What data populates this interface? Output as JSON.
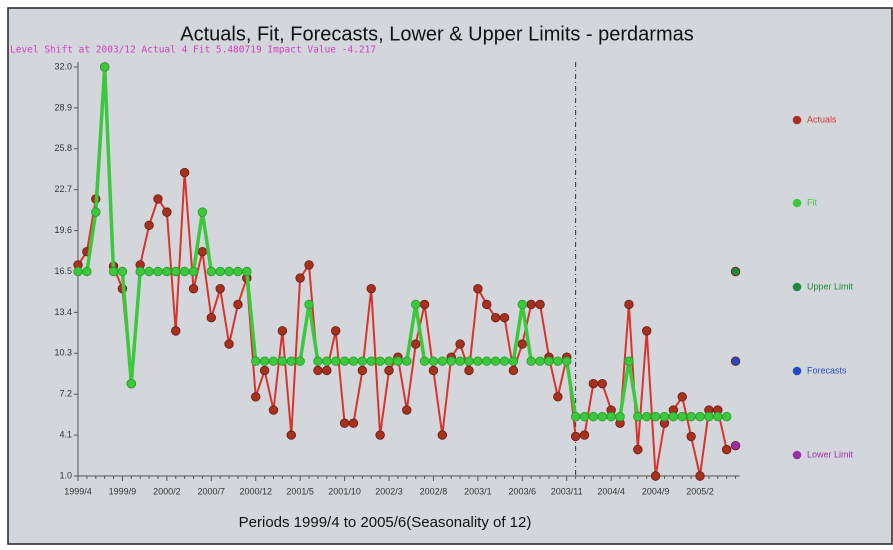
{
  "chart_data": {
    "type": "line",
    "title": "Actuals, Fit, Forecasts, Lower & Upper Limits - perdarmas",
    "subtitle": "Level Shift at 2003/12 Actual 4 Fit 5.480719 Impact Value -4.217",
    "level_shift_period": "2003/12",
    "x_label": "Periods 1999/4 to 2005/6(Seasonality of 12)",
    "categories": [
      "1999/4",
      null,
      null,
      null,
      null,
      "1999/9",
      null,
      null,
      null,
      null,
      "2000/2",
      null,
      null,
      null,
      null,
      "2000/7",
      null,
      null,
      null,
      null,
      "2000/12",
      null,
      null,
      null,
      null,
      "2001/5",
      null,
      null,
      null,
      null,
      "2001/10",
      null,
      null,
      null,
      null,
      "2002/3",
      null,
      null,
      null,
      null,
      "2002/8",
      null,
      null,
      null,
      null,
      "2003/1",
      null,
      null,
      null,
      null,
      "2003/6",
      null,
      null,
      null,
      null,
      "2003/11",
      null,
      null,
      null,
      null,
      "2004/4",
      null,
      null,
      null,
      null,
      "2004/9",
      null,
      null,
      null,
      null,
      "2005/2",
      null,
      null,
      null,
      null
    ],
    "ylim": [
      1,
      32
    ],
    "yticks": [
      {
        "value": 1,
        "label": "1.0"
      },
      4.1,
      7.2,
      10.3,
      13.4,
      16.5,
      19.6,
      22.7,
      25.8,
      28.9,
      {
        "value": 32,
        "label": "32.0"
      }
    ],
    "series": [
      {
        "name": "Actuals",
        "color": "#d8342c",
        "marker": "#a8301e",
        "line": true,
        "values": [
          17,
          18,
          22,
          32,
          16.9,
          15.2,
          8,
          17,
          20,
          22,
          21,
          12,
          24,
          15.2,
          18,
          13,
          15.2,
          11,
          14,
          16,
          7,
          9,
          6,
          12,
          4.1,
          16,
          17,
          9,
          9,
          12,
          5,
          5,
          9,
          15.2,
          4.1,
          9,
          10,
          6,
          11,
          14,
          9,
          4.1,
          10,
          11,
          9,
          15.2,
          14,
          13,
          13,
          9,
          11,
          14,
          14,
          10,
          7,
          10,
          4,
          4.1,
          8,
          8,
          6,
          5,
          14,
          3,
          12,
          1,
          5,
          6,
          7,
          4,
          1,
          6,
          6,
          3,
          null
        ]
      },
      {
        "name": "Fit",
        "color": "#3cc83c",
        "marker": "#3cc83c",
        "line": true,
        "values": [
          16.5,
          16.5,
          21,
          32,
          16.5,
          16.5,
          8,
          16.5,
          16.5,
          16.5,
          16.5,
          16.5,
          16.5,
          16.5,
          21,
          16.5,
          16.5,
          16.5,
          16.5,
          16.5,
          9.7,
          9.7,
          9.7,
          9.7,
          9.7,
          9.7,
          14,
          9.7,
          9.7,
          9.7,
          9.7,
          9.7,
          9.7,
          9.7,
          9.7,
          9.7,
          9.7,
          9.7,
          14,
          9.7,
          9.7,
          9.7,
          9.7,
          9.7,
          9.7,
          9.7,
          9.7,
          9.7,
          9.7,
          9.7,
          14,
          9.7,
          9.7,
          9.7,
          9.7,
          9.7,
          5.5,
          5.5,
          5.5,
          5.5,
          5.5,
          5.5,
          9.7,
          5.5,
          5.5,
          5.5,
          5.5,
          5.5,
          5.5,
          5.5,
          5.5,
          5.5,
          5.5,
          5.5,
          null
        ]
      },
      {
        "name": "Upper Limit",
        "color": "#1e8a3c",
        "marker": "#1e8a3c",
        "line": false,
        "values": [
          null,
          null,
          null,
          null,
          null,
          null,
          null,
          null,
          null,
          null,
          null,
          null,
          null,
          null,
          null,
          null,
          null,
          null,
          null,
          null,
          null,
          null,
          null,
          null,
          null,
          null,
          null,
          null,
          null,
          null,
          null,
          null,
          null,
          null,
          null,
          null,
          null,
          null,
          null,
          null,
          null,
          null,
          null,
          null,
          null,
          null,
          null,
          null,
          null,
          null,
          null,
          null,
          null,
          null,
          null,
          null,
          null,
          null,
          null,
          null,
          null,
          null,
          null,
          null,
          null,
          null,
          null,
          null,
          null,
          null,
          null,
          null,
          null,
          null,
          16.5
        ]
      },
      {
        "name": "Forecasts",
        "color": "#2848c0",
        "marker": "#2848c0",
        "line": false,
        "values": [
          null,
          null,
          null,
          null,
          null,
          null,
          null,
          null,
          null,
          null,
          null,
          null,
          null,
          null,
          null,
          null,
          null,
          null,
          null,
          null,
          null,
          null,
          null,
          null,
          null,
          null,
          null,
          null,
          null,
          null,
          null,
          null,
          null,
          null,
          null,
          null,
          null,
          null,
          null,
          null,
          null,
          null,
          null,
          null,
          null,
          null,
          null,
          null,
          null,
          null,
          null,
          null,
          null,
          null,
          null,
          null,
          null,
          null,
          null,
          null,
          null,
          null,
          null,
          null,
          null,
          null,
          null,
          null,
          null,
          null,
          null,
          null,
          null,
          null,
          9.7
        ]
      },
      {
        "name": "Lower Limit",
        "color": "#9a30a8",
        "marker": "#9a30a8",
        "line": false,
        "values": [
          null,
          null,
          null,
          null,
          null,
          null,
          null,
          null,
          null,
          null,
          null,
          null,
          null,
          null,
          null,
          null,
          null,
          null,
          null,
          null,
          null,
          null,
          null,
          null,
          null,
          null,
          null,
          null,
          null,
          null,
          null,
          null,
          null,
          null,
          null,
          null,
          null,
          null,
          null,
          null,
          null,
          null,
          null,
          null,
          null,
          null,
          null,
          null,
          null,
          null,
          null,
          null,
          null,
          null,
          null,
          null,
          null,
          null,
          null,
          null,
          null,
          null,
          null,
          null,
          null,
          null,
          null,
          null,
          null,
          null,
          null,
          null,
          null,
          null,
          3.3
        ]
      }
    ]
  }
}
